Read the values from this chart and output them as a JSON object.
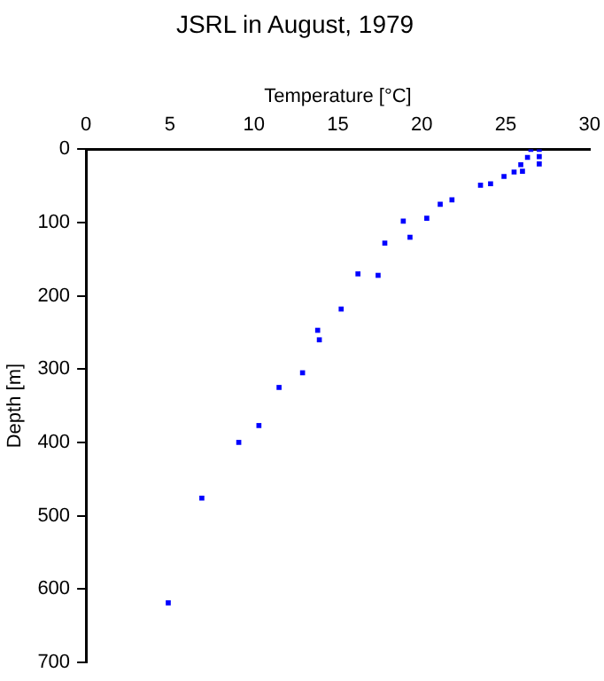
{
  "chart_data": {
    "type": "scatter",
    "title": "JSRL in August, 1979",
    "xlabel": "Temperature [°C]",
    "ylabel": "Depth [m]",
    "x": [
      26.5,
      27.0,
      26.3,
      27.0,
      25.9,
      27.0,
      26.0,
      25.5,
      24.9,
      24.1,
      23.5,
      21.8,
      21.1,
      20.3,
      18.9,
      19.3,
      17.8,
      16.2,
      17.4,
      15.2,
      13.8,
      13.9,
      12.9,
      11.5,
      10.3,
      9.1,
      6.9,
      4.9
    ],
    "values": [
      0,
      0,
      11,
      10,
      21,
      20,
      30,
      31,
      37,
      47,
      49,
      69,
      75,
      94,
      98,
      120,
      128,
      170,
      172,
      218,
      247,
      260,
      305,
      325,
      377,
      400,
      476,
      619
    ],
    "color": "#0000ff",
    "marker": "square",
    "xlim": [
      0,
      30
    ],
    "xticks": [
      0,
      5,
      10,
      15,
      20,
      25,
      30
    ],
    "ylim": [
      700,
      0
    ],
    "yticks": [
      0,
      100,
      200,
      300,
      400,
      500,
      600,
      700
    ],
    "grid": false,
    "legend": false
  }
}
